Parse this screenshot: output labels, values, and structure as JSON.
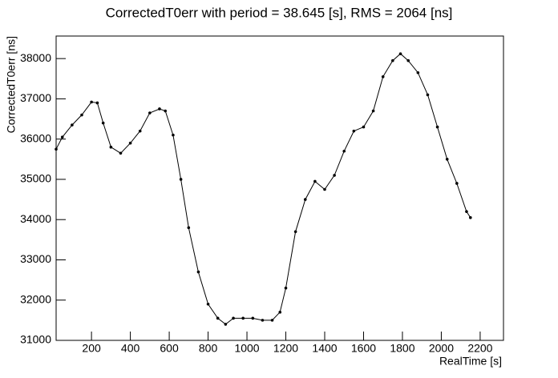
{
  "chart_data": {
    "type": "line",
    "title": "CorrectedT0err with period = 38.645 [s], RMS = 2064 [ns]",
    "x_label": "RealTime [s]",
    "y_label": "CorrectedT0err [ns]",
    "color": "#000000",
    "x": [
      18,
      50,
      100,
      150,
      200,
      230,
      260,
      300,
      350,
      400,
      450,
      500,
      550,
      580,
      620,
      660,
      700,
      750,
      800,
      850,
      890,
      930,
      980,
      1030,
      1080,
      1130,
      1170,
      1200,
      1250,
      1300,
      1350,
      1400,
      1450,
      1500,
      1550,
      1600,
      1650,
      1700,
      1750,
      1790,
      1830,
      1880,
      1930,
      1980,
      2030,
      2080,
      2130,
      2150
    ],
    "values": [
      35750,
      36050,
      36350,
      36600,
      36920,
      36900,
      36400,
      35800,
      35650,
      35900,
      36200,
      36650,
      36750,
      36700,
      36100,
      35000,
      33800,
      32700,
      31900,
      31550,
      31400,
      31550,
      31550,
      31550,
      31500,
      31500,
      31700,
      32300,
      33700,
      34500,
      34950,
      34750,
      35100,
      35700,
      36200,
      36300,
      36700,
      37550,
      37950,
      38120,
      37950,
      37650,
      37100,
      36300,
      35500,
      34900,
      34200,
      34050
    ],
    "xlim": [
      18,
      2320
    ],
    "ylim": [
      31000,
      38560
    ],
    "xticks": [
      200,
      400,
      600,
      800,
      1000,
      1200,
      1400,
      1600,
      1800,
      2000,
      2200
    ],
    "yticks": [
      31000,
      32000,
      33000,
      34000,
      35000,
      36000,
      37000,
      38000
    ]
  }
}
